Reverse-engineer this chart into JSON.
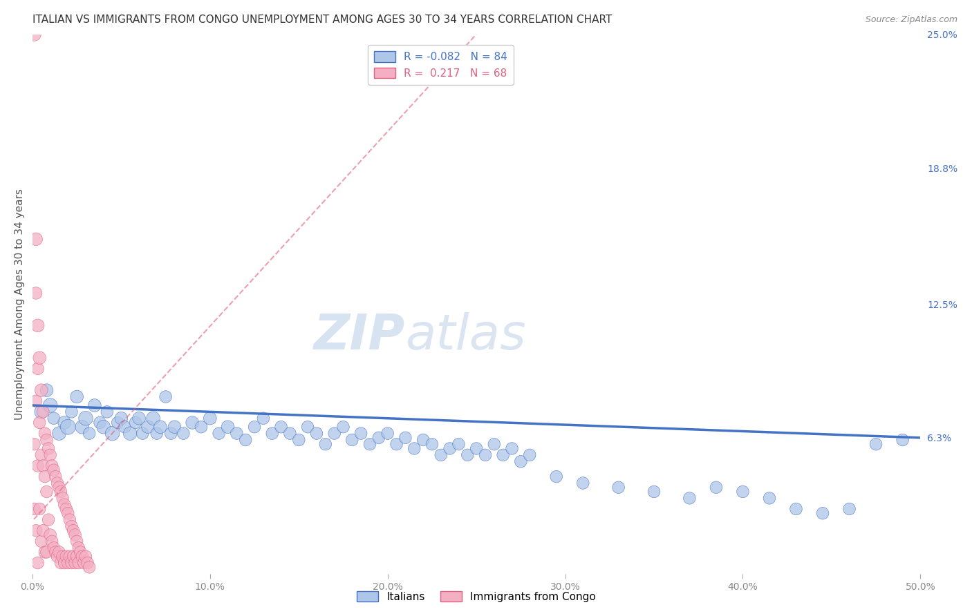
{
  "title": "ITALIAN VS IMMIGRANTS FROM CONGO UNEMPLOYMENT AMONG AGES 30 TO 34 YEARS CORRELATION CHART",
  "source": "Source: ZipAtlas.com",
  "ylabel": "Unemployment Among Ages 30 to 34 years",
  "xlim": [
    0.0,
    0.5
  ],
  "ylim": [
    0.0,
    0.25
  ],
  "xtick_labels": [
    "0.0%",
    "10.0%",
    "20.0%",
    "30.0%",
    "40.0%",
    "50.0%"
  ],
  "xtick_values": [
    0.0,
    0.1,
    0.2,
    0.3,
    0.4,
    0.5
  ],
  "ytick_right_labels": [
    "6.3%",
    "12.5%",
    "18.8%",
    "25.0%"
  ],
  "ytick_right_values": [
    0.063,
    0.125,
    0.188,
    0.25
  ],
  "italian_color": "#aec6e8",
  "italian_color_dark": "#4472c4",
  "congo_color": "#f4afc4",
  "congo_color_dark": "#e06080",
  "italian_R": -0.082,
  "italian_N": 84,
  "congo_R": 0.217,
  "congo_N": 68,
  "watermark_zip": "ZIP",
  "watermark_atlas": "atlas",
  "legend_italian_label": "Italians",
  "legend_congo_label": "Immigrants from Congo",
  "italian_scatter_x": [
    0.005,
    0.008,
    0.01,
    0.012,
    0.015,
    0.018,
    0.02,
    0.022,
    0.025,
    0.028,
    0.03,
    0.032,
    0.035,
    0.038,
    0.04,
    0.042,
    0.045,
    0.048,
    0.05,
    0.052,
    0.055,
    0.058,
    0.06,
    0.062,
    0.065,
    0.068,
    0.07,
    0.072,
    0.075,
    0.078,
    0.08,
    0.085,
    0.09,
    0.095,
    0.1,
    0.105,
    0.11,
    0.115,
    0.12,
    0.125,
    0.13,
    0.135,
    0.14,
    0.145,
    0.15,
    0.155,
    0.16,
    0.165,
    0.17,
    0.175,
    0.18,
    0.185,
    0.19,
    0.195,
    0.2,
    0.205,
    0.21,
    0.215,
    0.22,
    0.225,
    0.23,
    0.235,
    0.24,
    0.245,
    0.25,
    0.255,
    0.26,
    0.265,
    0.27,
    0.275,
    0.28,
    0.295,
    0.31,
    0.33,
    0.35,
    0.37,
    0.385,
    0.4,
    0.415,
    0.43,
    0.445,
    0.46,
    0.475,
    0.49
  ],
  "italian_scatter_y": [
    0.075,
    0.085,
    0.078,
    0.072,
    0.065,
    0.07,
    0.068,
    0.075,
    0.082,
    0.068,
    0.072,
    0.065,
    0.078,
    0.07,
    0.068,
    0.075,
    0.065,
    0.07,
    0.072,
    0.068,
    0.065,
    0.07,
    0.072,
    0.065,
    0.068,
    0.072,
    0.065,
    0.068,
    0.082,
    0.065,
    0.068,
    0.065,
    0.07,
    0.068,
    0.072,
    0.065,
    0.068,
    0.065,
    0.062,
    0.068,
    0.072,
    0.065,
    0.068,
    0.065,
    0.062,
    0.068,
    0.065,
    0.06,
    0.065,
    0.068,
    0.062,
    0.065,
    0.06,
    0.063,
    0.065,
    0.06,
    0.063,
    0.058,
    0.062,
    0.06,
    0.055,
    0.058,
    0.06,
    0.055,
    0.058,
    0.055,
    0.06,
    0.055,
    0.058,
    0.052,
    0.055,
    0.045,
    0.042,
    0.04,
    0.038,
    0.035,
    0.04,
    0.038,
    0.035,
    0.03,
    0.028,
    0.03,
    0.06,
    0.062
  ],
  "italian_scatter_sizes": [
    200,
    180,
    220,
    160,
    200,
    180,
    250,
    160,
    180,
    200,
    220,
    160,
    180,
    160,
    200,
    160,
    220,
    160,
    180,
    160,
    200,
    160,
    180,
    160,
    180,
    200,
    160,
    180,
    160,
    160,
    180,
    160,
    180,
    160,
    180,
    160,
    180,
    160,
    160,
    160,
    160,
    160,
    160,
    160,
    160,
    160,
    160,
    160,
    160,
    160,
    160,
    160,
    160,
    160,
    160,
    160,
    160,
    160,
    160,
    160,
    160,
    160,
    160,
    160,
    160,
    160,
    160,
    160,
    160,
    160,
    160,
    160,
    160,
    160,
    160,
    160,
    160,
    160,
    160,
    160,
    160,
    160,
    160,
    160
  ],
  "congo_scatter_x": [
    0.001,
    0.001,
    0.001,
    0.002,
    0.002,
    0.002,
    0.002,
    0.003,
    0.003,
    0.003,
    0.003,
    0.004,
    0.004,
    0.004,
    0.005,
    0.005,
    0.005,
    0.006,
    0.006,
    0.006,
    0.007,
    0.007,
    0.007,
    0.008,
    0.008,
    0.008,
    0.009,
    0.009,
    0.01,
    0.01,
    0.011,
    0.011,
    0.012,
    0.012,
    0.013,
    0.013,
    0.014,
    0.014,
    0.015,
    0.015,
    0.016,
    0.016,
    0.017,
    0.017,
    0.018,
    0.018,
    0.019,
    0.019,
    0.02,
    0.02,
    0.021,
    0.021,
    0.022,
    0.022,
    0.023,
    0.023,
    0.024,
    0.024,
    0.025,
    0.025,
    0.026,
    0.026,
    0.027,
    0.028,
    0.029,
    0.03,
    0.031,
    0.032
  ],
  "congo_scatter_y": [
    0.25,
    0.06,
    0.03,
    0.155,
    0.13,
    0.08,
    0.02,
    0.115,
    0.095,
    0.05,
    0.005,
    0.1,
    0.07,
    0.03,
    0.085,
    0.055,
    0.015,
    0.075,
    0.05,
    0.02,
    0.065,
    0.045,
    0.01,
    0.062,
    0.038,
    0.01,
    0.058,
    0.025,
    0.055,
    0.018,
    0.05,
    0.015,
    0.048,
    0.012,
    0.045,
    0.01,
    0.042,
    0.008,
    0.04,
    0.01,
    0.038,
    0.005,
    0.035,
    0.008,
    0.032,
    0.005,
    0.03,
    0.008,
    0.028,
    0.005,
    0.025,
    0.008,
    0.022,
    0.005,
    0.02,
    0.008,
    0.018,
    0.005,
    0.015,
    0.008,
    0.012,
    0.005,
    0.01,
    0.008,
    0.005,
    0.008,
    0.005,
    0.003
  ],
  "congo_scatter_sizes": [
    200,
    160,
    160,
    180,
    160,
    160,
    160,
    180,
    160,
    160,
    160,
    180,
    160,
    160,
    180,
    160,
    160,
    160,
    160,
    160,
    160,
    160,
    160,
    160,
    160,
    160,
    160,
    160,
    160,
    160,
    160,
    160,
    160,
    160,
    160,
    160,
    160,
    160,
    160,
    160,
    160,
    160,
    160,
    160,
    160,
    160,
    160,
    160,
    160,
    160,
    160,
    160,
    160,
    160,
    160,
    160,
    160,
    160,
    160,
    160,
    160,
    160,
    160,
    160,
    160,
    160,
    160,
    160
  ],
  "italian_trend_x": [
    0.0,
    0.5
  ],
  "italian_trend_y": [
    0.078,
    0.063
  ],
  "congo_trend_x_start": -0.005,
  "congo_trend_x_end": 0.25,
  "congo_trend_y_start": 0.02,
  "congo_trend_y_end": 0.25,
  "grid_color": "#dddddd",
  "background_color": "#ffffff",
  "title_fontsize": 11,
  "axis_label_fontsize": 11,
  "tick_fontsize": 10
}
